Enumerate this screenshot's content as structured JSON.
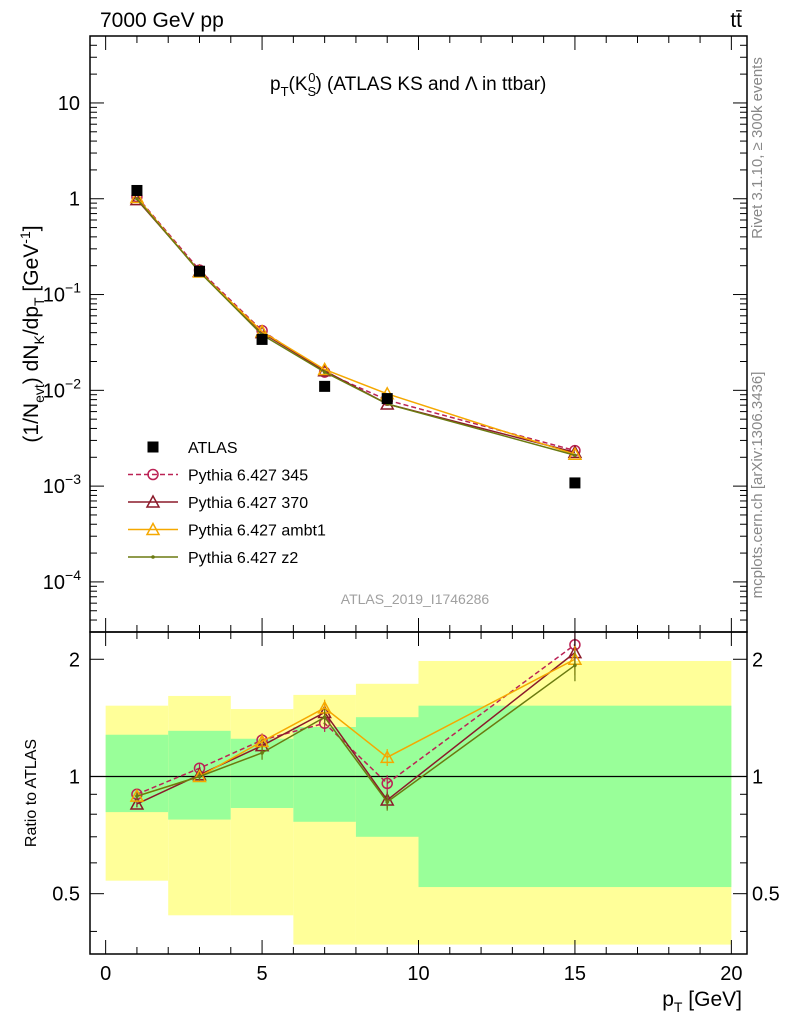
{
  "header": {
    "energy_label": "7000 GeV pp",
    "process_label": "tt̄",
    "plot_title": "p_T(K_S^0) (ATLAS KS and Λ in ttbar)",
    "analysis_id": "ATLAS_2019_I1746286"
  },
  "side_labels": {
    "rivet": "Rivet 3.1.10, ≥ 300k events",
    "mcplots": "mcplots.cern.ch [arXiv:1306.3436]"
  },
  "legend": {
    "entries": [
      {
        "name": "ATLAS",
        "color": "#000000",
        "marker": "square"
      },
      {
        "name": "Pythia 6.427 345",
        "color": "#bb2255",
        "marker": "circle",
        "dashed": true
      },
      {
        "name": "Pythia 6.427 370",
        "color": "#8b1a2a",
        "marker": "triangle"
      },
      {
        "name": "Pythia 6.427 ambt1",
        "color": "#f5a800",
        "marker": "triangle"
      },
      {
        "name": "Pythia 6.427 z2",
        "color": "#6b7a10",
        "marker": "dot"
      }
    ]
  },
  "chart_data": [
    {
      "type": "line",
      "panel": "main",
      "ylabel": "(1/N_evt) dN_K/dp_T [GeV^-1]",
      "yscale": "log",
      "ylim": [
        3e-05,
        50
      ],
      "xlim": [
        -0.5,
        20.5
      ],
      "ytick_labels": [
        "10^-4",
        "10^-3",
        "10^-2",
        "10^-1",
        "1",
        "10"
      ],
      "x": [
        1,
        3,
        5,
        7,
        9,
        15
      ],
      "series": [
        {
          "name": "ATLAS",
          "values": [
            1.22,
            0.175,
            0.034,
            0.011,
            0.0082,
            0.00108
          ]
        },
        {
          "name": "Pythia 6.427 345",
          "values": [
            1.05,
            0.18,
            0.042,
            0.0155,
            0.0079,
            0.00235
          ]
        },
        {
          "name": "Pythia 6.427 370",
          "values": [
            0.98,
            0.175,
            0.04,
            0.016,
            0.0072,
            0.00225
          ]
        },
        {
          "name": "Pythia 6.427 ambt1",
          "values": [
            1.03,
            0.172,
            0.041,
            0.0165,
            0.0092,
            0.00215
          ]
        },
        {
          "name": "Pythia 6.427 z2",
          "values": [
            1.0,
            0.172,
            0.038,
            0.0155,
            0.0072,
            0.0021
          ]
        }
      ]
    },
    {
      "type": "line",
      "panel": "ratio",
      "ylabel": "Ratio to ATLAS",
      "xlabel": "p_T [GeV]",
      "yscale": "log",
      "ylim": [
        0.35,
        2.35
      ],
      "xlim": [
        -0.5,
        20.5
      ],
      "xtick_labels": [
        "0",
        "5",
        "10",
        "15",
        "20"
      ],
      "ytick_labels": [
        "0.5",
        "1",
        "2"
      ],
      "reference_line": 1,
      "bands": {
        "x_edges": [
          0,
          2,
          4,
          6,
          8,
          10,
          20
        ],
        "inner_low": [
          0.81,
          0.775,
          0.83,
          0.765,
          0.7,
          0.52
        ],
        "inner_high": [
          1.28,
          1.31,
          1.25,
          1.34,
          1.42,
          1.52
        ],
        "outer_low": [
          0.54,
          0.44,
          0.44,
          0.37,
          0.37,
          0.37
        ],
        "outer_high": [
          1.52,
          1.61,
          1.49,
          1.62,
          1.73,
          1.98
        ]
      },
      "x": [
        1,
        3,
        5,
        7,
        9,
        15
      ],
      "series": [
        {
          "name": "Pythia 6.427 345",
          "values": [
            0.9,
            1.05,
            1.24,
            1.37,
            0.96,
            2.18
          ]
        },
        {
          "name": "Pythia 6.427 370",
          "values": [
            0.85,
            1.01,
            1.2,
            1.46,
            0.87,
            2.08
          ]
        },
        {
          "name": "Pythia 6.427 ambt1",
          "values": [
            0.89,
            1.0,
            1.23,
            1.5,
            1.12,
            2.0
          ]
        },
        {
          "name": "Pythia 6.427 z2",
          "values": [
            0.89,
            1.0,
            1.15,
            1.42,
            0.86,
            1.93
          ]
        }
      ]
    }
  ]
}
